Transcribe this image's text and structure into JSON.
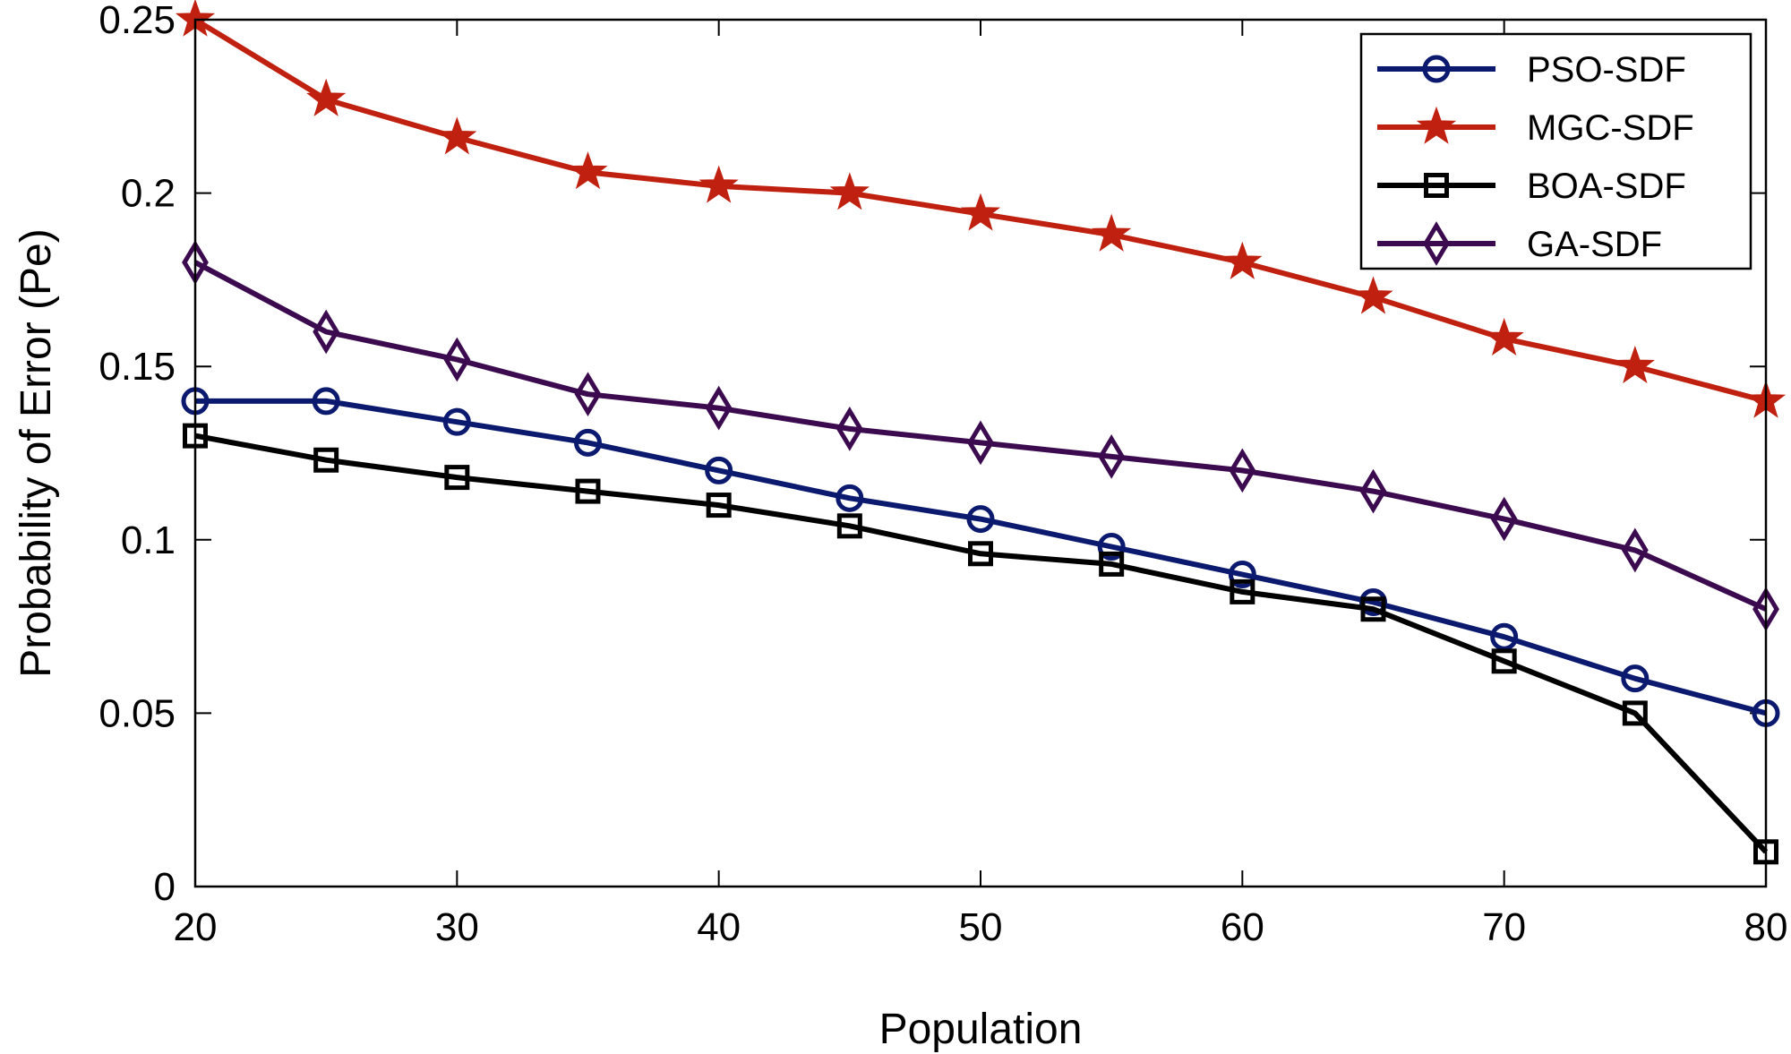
{
  "chart_data": {
    "type": "line",
    "title": "",
    "xlabel": "Population",
    "ylabel": "Probability of Error (Pe)",
    "xlim": [
      20,
      80
    ],
    "ylim": [
      0,
      0.25
    ],
    "x": [
      20,
      25,
      30,
      35,
      40,
      45,
      50,
      55,
      60,
      65,
      70,
      75,
      80
    ],
    "x_ticks": [
      20,
      30,
      40,
      50,
      60,
      70,
      80
    ],
    "x_tick_labels": [
      "20",
      "30",
      "40",
      "50",
      "60",
      "70",
      "80"
    ],
    "y_ticks": [
      0,
      0.05,
      0.1,
      0.15,
      0.2,
      0.25
    ],
    "y_tick_labels": [
      "0",
      "0.05",
      "0.1",
      "0.15",
      "0.2",
      "0.25"
    ],
    "grid": false,
    "legend_position": "top-right",
    "series": [
      {
        "name": "PSO-SDF",
        "color": "#0b1a6e",
        "marker": "circle",
        "values": [
          0.14,
          0.14,
          0.134,
          0.128,
          0.12,
          0.112,
          0.106,
          0.098,
          0.09,
          0.082,
          0.072,
          0.06,
          0.05
        ]
      },
      {
        "name": "MGC-SDF",
        "color": "#c0200f",
        "marker": "star",
        "values": [
          0.25,
          0.227,
          0.216,
          0.206,
          0.202,
          0.2,
          0.194,
          0.188,
          0.18,
          0.17,
          0.158,
          0.15,
          0.14
        ]
      },
      {
        "name": "BOA-SDF",
        "color": "#000000",
        "marker": "square",
        "values": [
          0.13,
          0.123,
          0.118,
          0.114,
          0.11,
          0.104,
          0.096,
          0.093,
          0.085,
          0.08,
          0.065,
          0.05,
          0.01
        ]
      },
      {
        "name": "GA-SDF",
        "color": "#3b0a4f",
        "marker": "diamond",
        "values": [
          0.18,
          0.16,
          0.152,
          0.142,
          0.138,
          0.132,
          0.128,
          0.124,
          0.12,
          0.114,
          0.106,
          0.097,
          0.08
        ]
      }
    ]
  }
}
